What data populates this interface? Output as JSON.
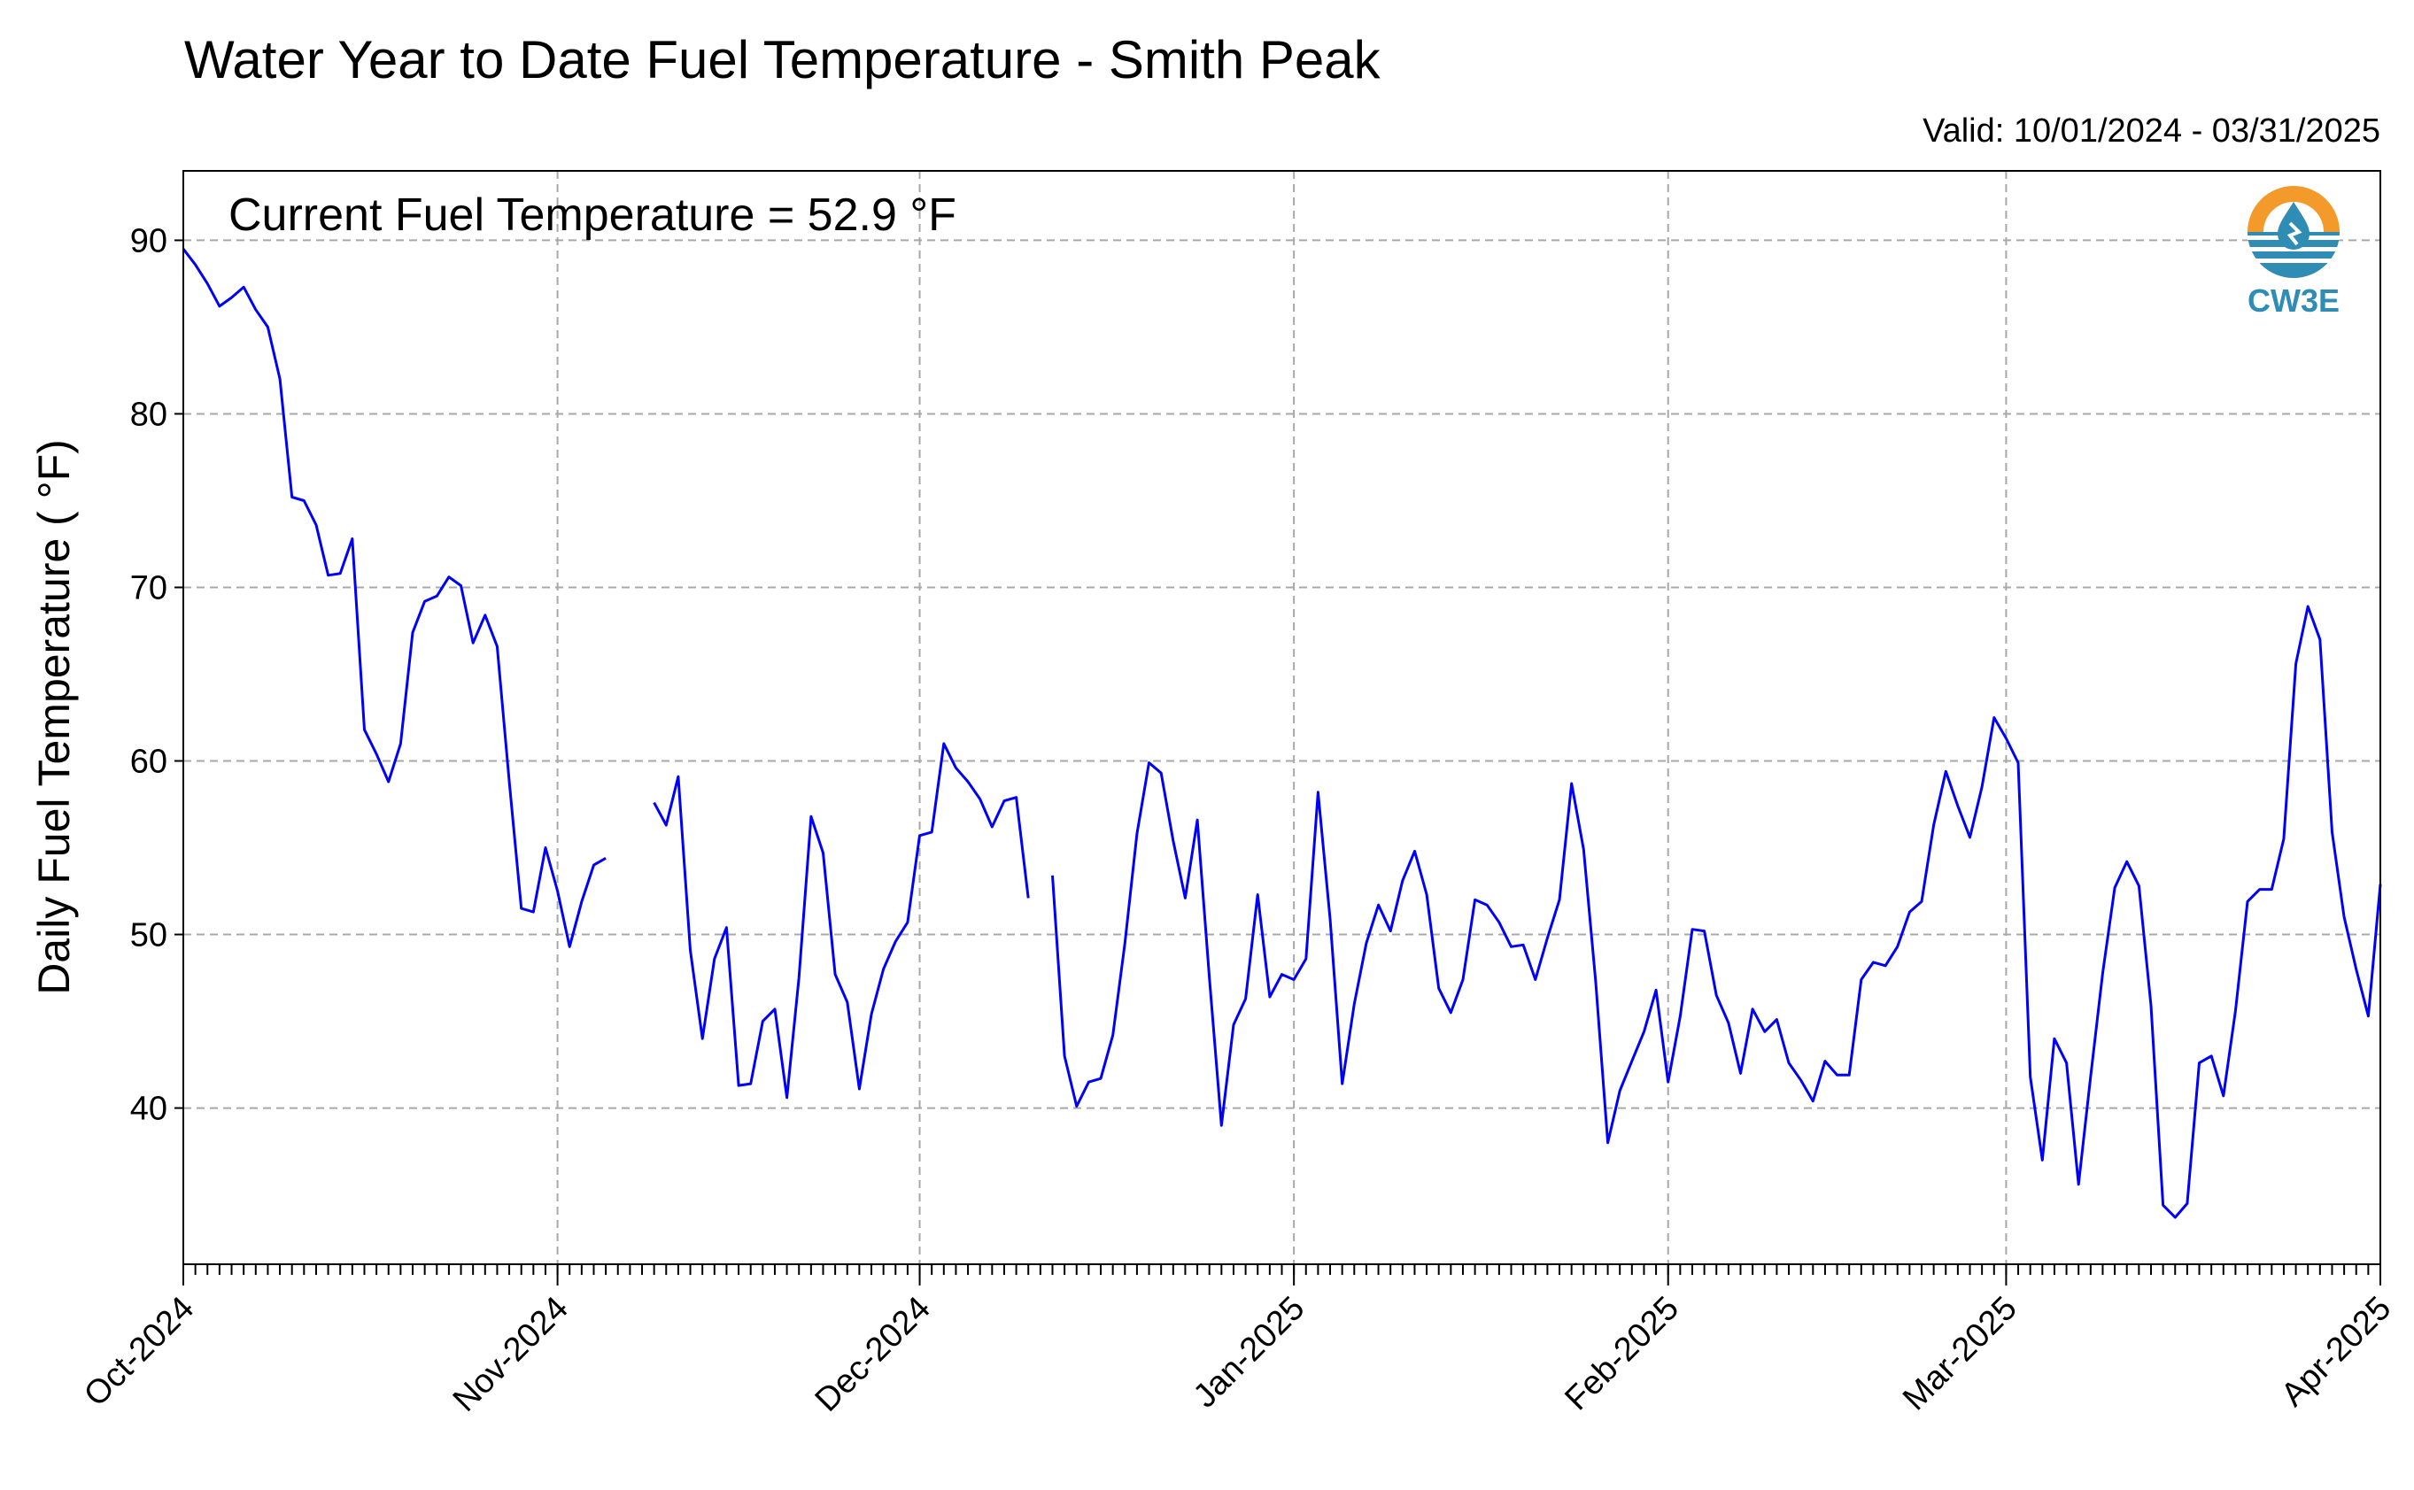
{
  "chart_data": {
    "type": "line",
    "title": "Water Year to Date Fuel Temperature - Smith Peak",
    "subtitle": "Valid: 10/01/2024 - 03/31/2025",
    "annotation": "Current Fuel Temperature = 52.9  °F",
    "xlabel": "",
    "ylabel": "Daily Fuel Temperature ( °F)",
    "xlim": [
      "2024-10-01",
      "2025-04-01"
    ],
    "ylim": [
      31,
      94
    ],
    "yticks": [
      40,
      50,
      60,
      70,
      80,
      90
    ],
    "xticks": [
      {
        "date": "2024-10-01",
        "label": "Oct-2024"
      },
      {
        "date": "2024-11-01",
        "label": "Nov-2024"
      },
      {
        "date": "2024-12-01",
        "label": "Dec-2024"
      },
      {
        "date": "2025-01-01",
        "label": "Jan-2025"
      },
      {
        "date": "2025-02-01",
        "label": "Feb-2025"
      },
      {
        "date": "2025-03-01",
        "label": "Mar-2025"
      },
      {
        "date": "2025-04-01",
        "label": "Apr-2025"
      }
    ],
    "grid": true,
    "line_color": "#0000ff",
    "series": [
      {
        "x_start": "2024-10-01",
        "values": [
          89.5,
          88.6,
          87.5,
          86.2,
          86.7,
          87.3,
          86.0,
          85.0,
          82.0,
          75.2,
          75.0,
          73.6,
          70.7,
          70.8,
          72.8,
          61.8,
          60.4,
          58.8,
          61.0,
          67.4,
          69.2,
          69.5,
          70.6,
          70.1,
          66.8,
          68.4,
          66.6,
          58.8,
          51.5,
          51.3,
          55.0,
          52.5,
          49.3,
          51.9,
          54.0,
          54.4,
          null,
          null,
          null,
          57.6,
          56.3,
          59.1,
          49.1,
          44.0,
          48.6,
          50.4,
          41.3,
          41.4,
          45.0,
          45.7,
          40.6,
          47.5,
          56.8,
          54.7,
          47.7,
          46.1,
          41.1,
          45.4,
          48.0,
          49.6,
          50.7,
          55.7,
          55.9,
          61.0,
          59.6,
          58.8,
          57.8,
          56.2,
          57.7,
          57.9,
          52.1,
          null,
          53.4,
          43.0,
          40.1,
          41.5,
          41.7,
          44.2,
          49.5,
          55.8,
          59.9,
          59.3,
          55.4,
          52.1,
          56.6,
          47.5,
          39.0,
          44.8,
          46.3,
          52.3,
          46.4,
          47.7,
          47.4,
          48.6,
          58.2,
          50.9,
          41.4,
          46.0,
          49.5,
          51.7,
          50.2,
          53.1,
          54.8,
          52.3,
          46.9,
          45.5,
          47.4,
          52.0,
          51.7,
          50.7,
          49.3,
          49.4,
          47.4,
          49.8,
          52.0,
          58.7,
          54.9,
          47.3,
          38.0,
          41.0,
          42.7,
          44.4,
          46.8,
          41.5,
          45.3,
          50.3,
          50.2,
          46.5,
          44.9,
          42.0,
          45.7,
          44.4,
          45.1,
          42.6,
          41.6,
          40.4,
          42.7,
          41.9,
          41.9,
          47.4,
          48.4,
          48.2,
          49.3,
          51.3,
          51.9,
          56.3,
          59.4,
          57.4,
          55.6,
          58.5,
          62.5,
          61.3,
          59.9,
          41.8,
          37.0,
          44.0,
          42.6,
          35.6,
          41.8,
          47.8,
          52.7,
          54.2,
          52.8,
          45.9,
          34.4,
          33.7,
          34.5,
          42.6,
          43.0,
          40.7,
          45.6,
          51.9,
          52.6,
          52.6,
          55.5,
          65.6,
          68.9,
          67.0,
          55.9,
          51.0,
          48.0,
          45.3,
          52.9
        ]
      }
    ]
  },
  "logo": {
    "text": "CW3E",
    "colors": {
      "orange": "#f39a2b",
      "teal": "#2e8cb5"
    }
  }
}
